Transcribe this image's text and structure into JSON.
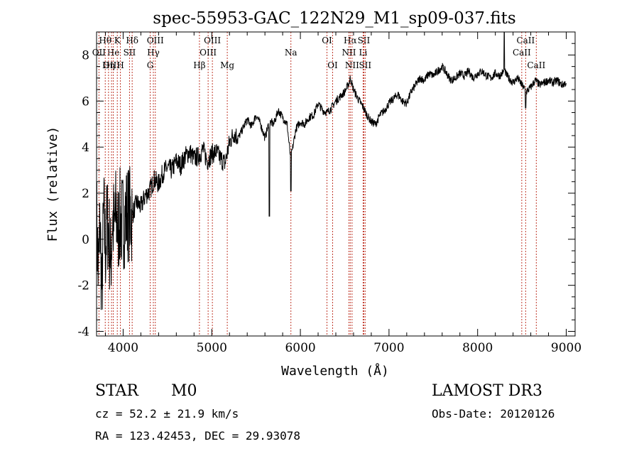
{
  "chart_data": {
    "type": "line",
    "title": "spec-55953-GAC_122N29_M1_sp09-037.fits",
    "xlabel": "Wavelength (Å)",
    "ylabel": "Flux (relative)",
    "xlim": [
      3700,
      9100
    ],
    "ylim": [
      -4.2,
      9.0
    ],
    "x_ticks": [
      4000,
      5000,
      6000,
      7000,
      8000,
      9000
    ],
    "y_ticks": [
      -4,
      -2,
      0,
      2,
      4,
      6,
      8
    ],
    "grid": false,
    "legend": "none",
    "series": [
      {
        "name": "flux",
        "x": [
          3700,
          3720,
          3740,
          3760,
          3780,
          3800,
          3820,
          3840,
          3860,
          3880,
          3900,
          3920,
          3940,
          3960,
          3980,
          4000,
          4050,
          4100,
          4150,
          4200,
          4250,
          4300,
          4350,
          4400,
          4450,
          4500,
          4550,
          4600,
          4650,
          4700,
          4750,
          4800,
          4850,
          4900,
          4950,
          5000,
          5050,
          5100,
          5150,
          5200,
          5250,
          5300,
          5350,
          5400,
          5450,
          5500,
          5550,
          5600,
          5650,
          5700,
          5750,
          5800,
          5850,
          5890,
          5910,
          5950,
          6000,
          6050,
          6100,
          6150,
          6200,
          6250,
          6300,
          6350,
          6400,
          6450,
          6500,
          6550,
          6563,
          6600,
          6650,
          6700,
          6750,
          6800,
          6850,
          6900,
          6950,
          7000,
          7050,
          7100,
          7150,
          7200,
          7250,
          7300,
          7350,
          7400,
          7450,
          7500,
          7550,
          7600,
          7650,
          7700,
          7750,
          7800,
          7850,
          7900,
          7950,
          8000,
          8050,
          8100,
          8150,
          8200,
          8250,
          8300,
          8350,
          8400,
          8450,
          8500,
          8550,
          8600,
          8650,
          8700,
          8750,
          8800,
          8850,
          8900,
          8950,
          9000
        ],
        "y": [
          1.0,
          -1.5,
          0.6,
          -2.5,
          1.2,
          -0.5,
          0.8,
          0.2,
          -1.0,
          0.9,
          0.4,
          1.2,
          0.3,
          1.0,
          0.7,
          0.8,
          1.2,
          1.0,
          1.6,
          1.4,
          1.9,
          2.1,
          2.6,
          2.4,
          2.9,
          3.1,
          3.0,
          3.4,
          3.2,
          3.6,
          3.8,
          3.5,
          3.6,
          3.9,
          3.4,
          3.7,
          3.8,
          3.5,
          3.3,
          4.2,
          4.6,
          4.4,
          4.8,
          5.2,
          4.9,
          5.4,
          5.0,
          4.4,
          5.1,
          5.0,
          5.6,
          5.3,
          5.0,
          3.5,
          3.9,
          4.8,
          5.1,
          5.0,
          5.3,
          5.4,
          5.9,
          5.6,
          5.5,
          5.7,
          6.0,
          6.2,
          6.4,
          6.8,
          7.0,
          6.5,
          6.1,
          5.8,
          5.4,
          5.1,
          5.0,
          5.4,
          5.6,
          5.9,
          6.1,
          6.3,
          6.0,
          5.9,
          6.4,
          6.7,
          7.0,
          6.9,
          7.2,
          7.1,
          7.3,
          7.5,
          7.2,
          6.9,
          7.0,
          7.2,
          7.1,
          7.3,
          7.0,
          7.2,
          7.3,
          7.1,
          7.0,
          7.2,
          7.1,
          7.3,
          7.0,
          6.8,
          7.0,
          6.7,
          6.4,
          6.6,
          6.9,
          6.7,
          6.8,
          6.9,
          6.8,
          6.9,
          6.7,
          6.8
        ]
      }
    ],
    "lines": [
      {
        "name": "Hθ",
        "x": 3798,
        "row": 0
      },
      {
        "name": "OII",
        "x": 3727,
        "row": 1
      },
      {
        "name": "OIII",
        "x": 3869,
        "row": 2
      },
      {
        "name": "He",
        "x": 3889,
        "row": 1
      },
      {
        "name": "Hη",
        "x": 3835,
        "row": 2
      },
      {
        "name": "K",
        "x": 3934,
        "row": 0
      },
      {
        "name": "H",
        "x": 3969,
        "row": 2
      },
      {
        "name": "SII",
        "x": 4072,
        "row": 1
      },
      {
        "name": "Hδ",
        "x": 4102,
        "row": 0
      },
      {
        "name": "OIII",
        "x": 4363,
        "row": 0
      },
      {
        "name": "Hγ",
        "x": 4341,
        "row": 1
      },
      {
        "name": "G",
        "x": 4305,
        "row": 2
      },
      {
        "name": "Hβ",
        "x": 4861,
        "row": 2
      },
      {
        "name": "OIII",
        "x": 5007,
        "row": 0
      },
      {
        "name": "OIII",
        "x": 4959,
        "row": 1
      },
      {
        "name": "Mg",
        "x": 5175,
        "row": 2
      },
      {
        "name": "Na",
        "x": 5893,
        "row": 1
      },
      {
        "name": "OI",
        "x": 6300,
        "row": 0
      },
      {
        "name": "OI",
        "x": 6364,
        "row": 2
      },
      {
        "name": "Hα",
        "x": 6563,
        "row": 0
      },
      {
        "name": "NII",
        "x": 6548,
        "row": 1
      },
      {
        "name": "NII",
        "x": 6583,
        "row": 2
      },
      {
        "name": "SII",
        "x": 6716,
        "row": 0
      },
      {
        "name": "Li",
        "x": 6708,
        "row": 1
      },
      {
        "name": "SII",
        "x": 6731,
        "row": 2
      },
      {
        "name": "CaII",
        "x": 8542,
        "row": 0
      },
      {
        "name": "CaII",
        "x": 8498,
        "row": 1
      },
      {
        "name": "CaII",
        "x": 8662,
        "row": 2
      }
    ]
  },
  "info": {
    "object_class": "STAR",
    "subclass": "M0",
    "survey": "LAMOST DR3",
    "cz": "cz = 52.2 ± 21.9 km/s",
    "obs_date": "Obs-Date: 20120126",
    "coords": "RA = 123.42453, DEC =  29.93078"
  }
}
